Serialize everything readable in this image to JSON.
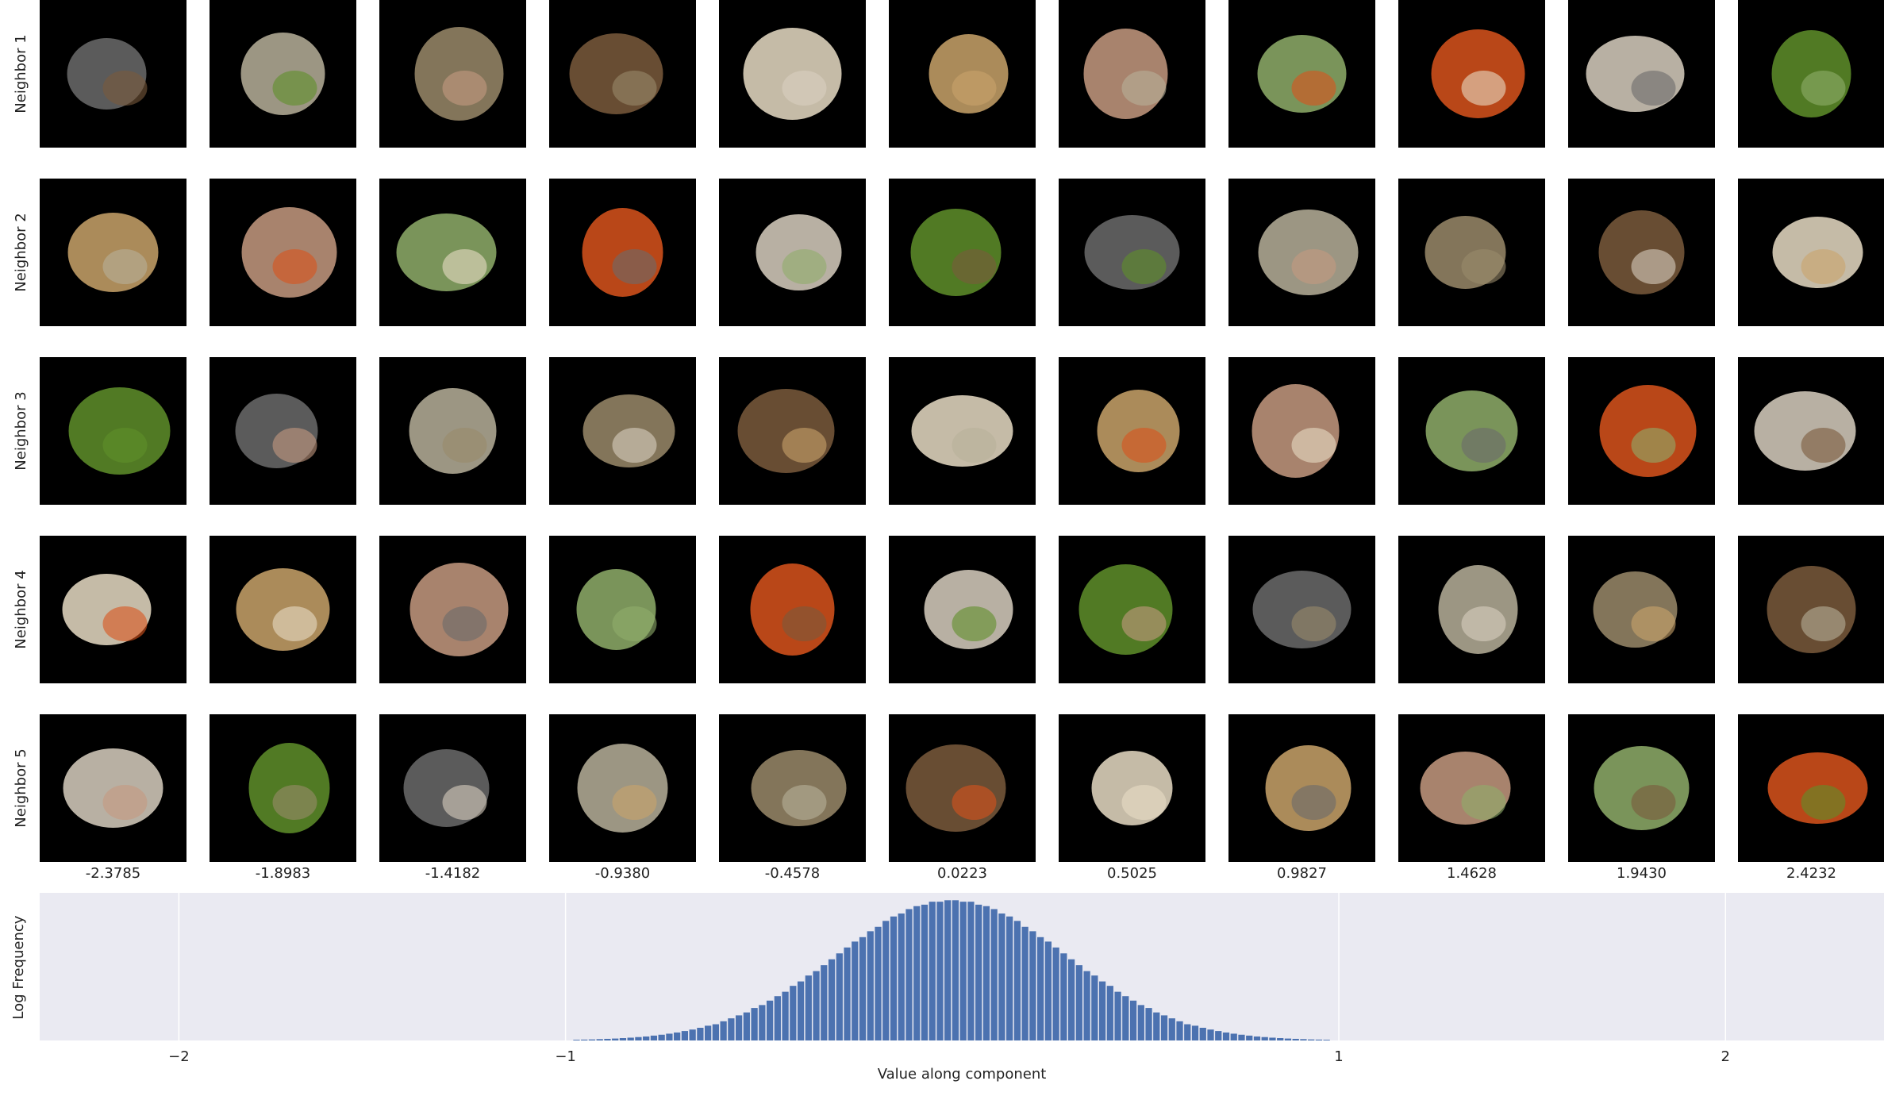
{
  "row_labels": [
    "Neighbor 1",
    "Neighbor 2",
    "Neighbor 3",
    "Neighbor 4",
    "Neighbor 5"
  ],
  "column_labels": [
    "-2.3785",
    "-1.8983",
    "-1.4182",
    "-0.9380",
    "-0.4578",
    "0.0223",
    "0.5025",
    "0.9827",
    "1.4628",
    "1.9430",
    "2.4232"
  ],
  "chart_data": {
    "type": "histogram",
    "xlabel": "Value along component",
    "ylabel": "Log Frequency",
    "bins": [
      -0.98,
      -0.96,
      -0.94,
      -0.92,
      -0.9,
      -0.88,
      -0.86,
      -0.84,
      -0.82,
      -0.8,
      -0.78,
      -0.76,
      -0.74,
      -0.72,
      -0.7,
      -0.68,
      -0.66,
      -0.64,
      -0.62,
      -0.6,
      -0.58,
      -0.56,
      -0.54,
      -0.52,
      -0.5,
      -0.48,
      -0.46,
      -0.44,
      -0.42,
      -0.4,
      -0.38,
      -0.36,
      -0.34,
      -0.32,
      -0.3,
      -0.28,
      -0.26,
      -0.24,
      -0.22,
      -0.2,
      -0.18,
      -0.16,
      -0.14,
      -0.12,
      -0.1,
      -0.08,
      -0.06,
      -0.04,
      -0.02,
      0,
      0.02,
      0.04,
      0.06,
      0.08,
      0.1,
      0.12,
      0.14,
      0.16,
      0.18,
      0.2,
      0.22,
      0.24,
      0.26,
      0.28,
      0.3,
      0.32,
      0.34,
      0.36,
      0.38,
      0.4,
      0.42,
      0.44,
      0.46,
      0.48,
      0.5,
      0.52,
      0.54,
      0.56,
      0.58,
      0.6,
      0.62,
      0.64,
      0.66,
      0.68,
      0.7,
      0.72,
      0.74,
      0.76,
      0.78,
      0.8,
      0.82,
      0.84,
      0.86,
      0.88,
      0.9,
      0.92,
      0.94,
      0.96,
      0.98
    ],
    "values": [
      0.005,
      0.006,
      0.007,
      0.009,
      0.011,
      0.013,
      0.016,
      0.019,
      0.023,
      0.027,
      0.033,
      0.039,
      0.046,
      0.054,
      0.064,
      0.074,
      0.086,
      0.1,
      0.11,
      0.13,
      0.15,
      0.17,
      0.19,
      0.22,
      0.24,
      0.27,
      0.3,
      0.33,
      0.37,
      0.4,
      0.44,
      0.47,
      0.51,
      0.55,
      0.59,
      0.63,
      0.67,
      0.7,
      0.74,
      0.77,
      0.81,
      0.84,
      0.86,
      0.89,
      0.91,
      0.92,
      0.94,
      0.94,
      0.95,
      0.95,
      0.94,
      0.94,
      0.92,
      0.91,
      0.89,
      0.86,
      0.84,
      0.81,
      0.77,
      0.74,
      0.7,
      0.67,
      0.63,
      0.59,
      0.55,
      0.51,
      0.47,
      0.44,
      0.4,
      0.37,
      0.33,
      0.3,
      0.27,
      0.24,
      0.22,
      0.19,
      0.17,
      0.15,
      0.13,
      0.11,
      0.1,
      0.086,
      0.074,
      0.064,
      0.054,
      0.046,
      0.039,
      0.033,
      0.027,
      0.023,
      0.019,
      0.016,
      0.013,
      0.011,
      0.009,
      0.007,
      0.006,
      0.005
    ],
    "color": "#4c72b0",
    "xlim": [
      -2.36,
      2.41
    ],
    "ylim": [
      0,
      1
    ],
    "xticks": [
      {
        "value": -2,
        "label": "−2"
      },
      {
        "value": -1,
        "label": "−1"
      },
      {
        "value": 1,
        "label": "1"
      },
      {
        "value": 2,
        "label": "2"
      }
    ],
    "grid": true
  }
}
